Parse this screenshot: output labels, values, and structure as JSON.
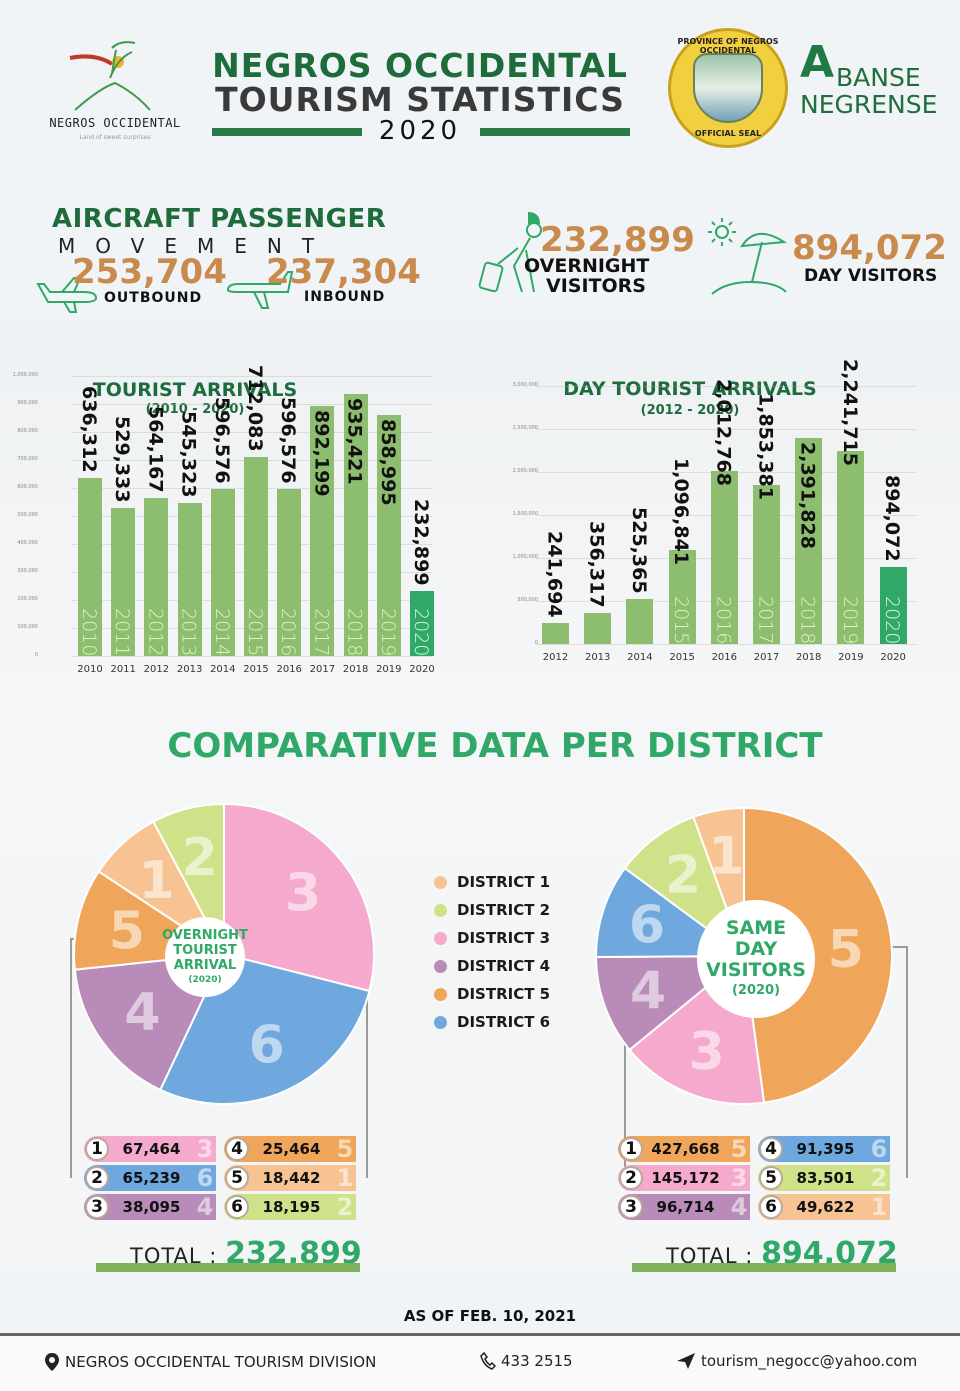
{
  "header": {
    "logo_brand": "NEGROS OCCIDENTAL",
    "logo_tagline": "Land of sweet surprises",
    "title_line1": "NEGROS OCCIDENTAL",
    "title_line2": "TOURISM STATISTICS",
    "year": "2020",
    "seal_top": "PROVINCE OF NEGROS OCCIDENTAL",
    "seal_bottom": "OFFICIAL SEAL",
    "abanse_a": "A",
    "abanse_word1": "BANSE",
    "abanse_word2": "NEGRENSE"
  },
  "stats": {
    "aircraft_title": "AIRCRAFT PASSENGER",
    "aircraft_subtitle": "MOVEMENT",
    "outbound_value": "253,704",
    "outbound_label": "OUTBOUND",
    "inbound_value": "237,304",
    "inbound_label": "INBOUND",
    "overnight_value": "232,899",
    "overnight_label_1": "OVERNIGHT",
    "overnight_label_2": "VISITORS",
    "day_value": "894,072",
    "day_label": "DAY VISITORS"
  },
  "colors": {
    "dark_green": "#1e6b3c",
    "accent_green": "#2fa868",
    "bar_green": "#8dbd6e",
    "orange_number": "#c98a4e",
    "district_1": "#f7c393",
    "district_2": "#cfe28a",
    "district_3": "#f5a9cc",
    "district_4": "#b98bb8",
    "district_5": "#efa65a",
    "district_6": "#6fa8de"
  },
  "chart_data": [
    {
      "type": "bar",
      "title": "TOURIST ARRIVALS",
      "subtitle": "(2010 - 2020)",
      "categories": [
        "2010",
        "2011",
        "2012",
        "2013",
        "2014",
        "2015",
        "2016",
        "2017",
        "2018",
        "2019",
        "2020"
      ],
      "values": [
        636312,
        529333,
        564167,
        545323,
        596576,
        712083,
        596576,
        892199,
        935421,
        858995,
        232899
      ],
      "labels": [
        "636,312",
        "529,333",
        "564,167",
        "545,323",
        "596,576",
        "712,083",
        "596,576",
        "892,199",
        "935,421",
        "858,995",
        "232,899"
      ],
      "yticks": [
        "0",
        "100,000",
        "200,000",
        "300,000",
        "400,000",
        "500,000",
        "600,000",
        "700,000",
        "800,000",
        "900,000",
        "1,000,000"
      ],
      "ylim": [
        0,
        1000000
      ],
      "xlabel": "",
      "ylabel": "",
      "grid": true,
      "highlight": "2020"
    },
    {
      "type": "bar",
      "title": "DAY TOURIST ARRIVALS",
      "subtitle": "(2012 - 2020)",
      "categories": [
        "2012",
        "2013",
        "2014",
        "2015",
        "2016",
        "2017",
        "2018",
        "2019",
        "2020"
      ],
      "values": [
        241694,
        356317,
        525365,
        1096841,
        2012768,
        1853381,
        2391828,
        2241715,
        894072
      ],
      "labels": [
        "241,694",
        "356,317",
        "525,365",
        "1,096,841",
        "2,012,768",
        "1,853,381",
        "2,391,828",
        "2,241,715",
        "894,072"
      ],
      "yticks": [
        "0",
        "500,000",
        "1,000,000",
        "1,500,000",
        "2,000,000",
        "2,500,000",
        "3,000,000"
      ],
      "ylim": [
        0,
        3000000
      ],
      "xlabel": "",
      "ylabel": "",
      "grid": true,
      "highlight": "2020"
    },
    {
      "type": "pie",
      "title": "OVERNIGHT TOURIST ARRIVAL (2020)",
      "categories": [
        "District 3",
        "District 6",
        "District 4",
        "District 5",
        "District 1",
        "District 2"
      ],
      "values": [
        67464,
        65239,
        38095,
        25464,
        18442,
        18195
      ],
      "total": 232899
    },
    {
      "type": "pie",
      "title": "SAME DAY VISITORS (2020)",
      "categories": [
        "District 5",
        "District 3",
        "District 4",
        "District 6",
        "District 2",
        "District 1"
      ],
      "values": [
        427668,
        145172,
        96714,
        91395,
        83501,
        49622
      ],
      "total": 894072
    }
  ],
  "comparative": {
    "title": "COMPARATIVE DATA PER DISTRICT",
    "overnight_center": [
      "OVERNIGHT",
      "TOURIST",
      "ARRIVAL",
      "(2020)"
    ],
    "sameday_center": [
      "SAME",
      "DAY",
      "VISITORS",
      "(2020)"
    ],
    "legend": [
      "DISTRICT 1",
      "DISTRICT 2",
      "DISTRICT 3",
      "DISTRICT 4",
      "DISTRICT 5",
      "DISTRICT 6"
    ],
    "overnight_ranks": [
      {
        "rank": "1",
        "value": "67,464",
        "district": "3"
      },
      {
        "rank": "2",
        "value": "65,239",
        "district": "6"
      },
      {
        "rank": "3",
        "value": "38,095",
        "district": "4"
      },
      {
        "rank": "4",
        "value": "25,464",
        "district": "5"
      },
      {
        "rank": "5",
        "value": "18,442",
        "district": "1"
      },
      {
        "rank": "6",
        "value": "18,195",
        "district": "2"
      }
    ],
    "overnight_total_label": "TOTAL :",
    "overnight_total": "232,899",
    "sameday_ranks": [
      {
        "rank": "1",
        "value": "427,668",
        "district": "5"
      },
      {
        "rank": "2",
        "value": "145,172",
        "district": "3"
      },
      {
        "rank": "3",
        "value": "96,714",
        "district": "4"
      },
      {
        "rank": "4",
        "value": "91,395",
        "district": "6"
      },
      {
        "rank": "5",
        "value": "83,501",
        "district": "2"
      },
      {
        "rank": "6",
        "value": "49,622",
        "district": "1"
      }
    ],
    "sameday_total_label": "TOTAL :",
    "sameday_total": "894,072"
  },
  "footer": {
    "as_of": "AS OF FEB. 10, 2021",
    "office": "NEGROS OCCIDENTAL TOURISM DIVISION",
    "phone": "433 2515",
    "email": "tourism_negocc@yahoo.com",
    "icons": [
      "map-pin-icon",
      "phone-icon",
      "send-icon"
    ]
  }
}
